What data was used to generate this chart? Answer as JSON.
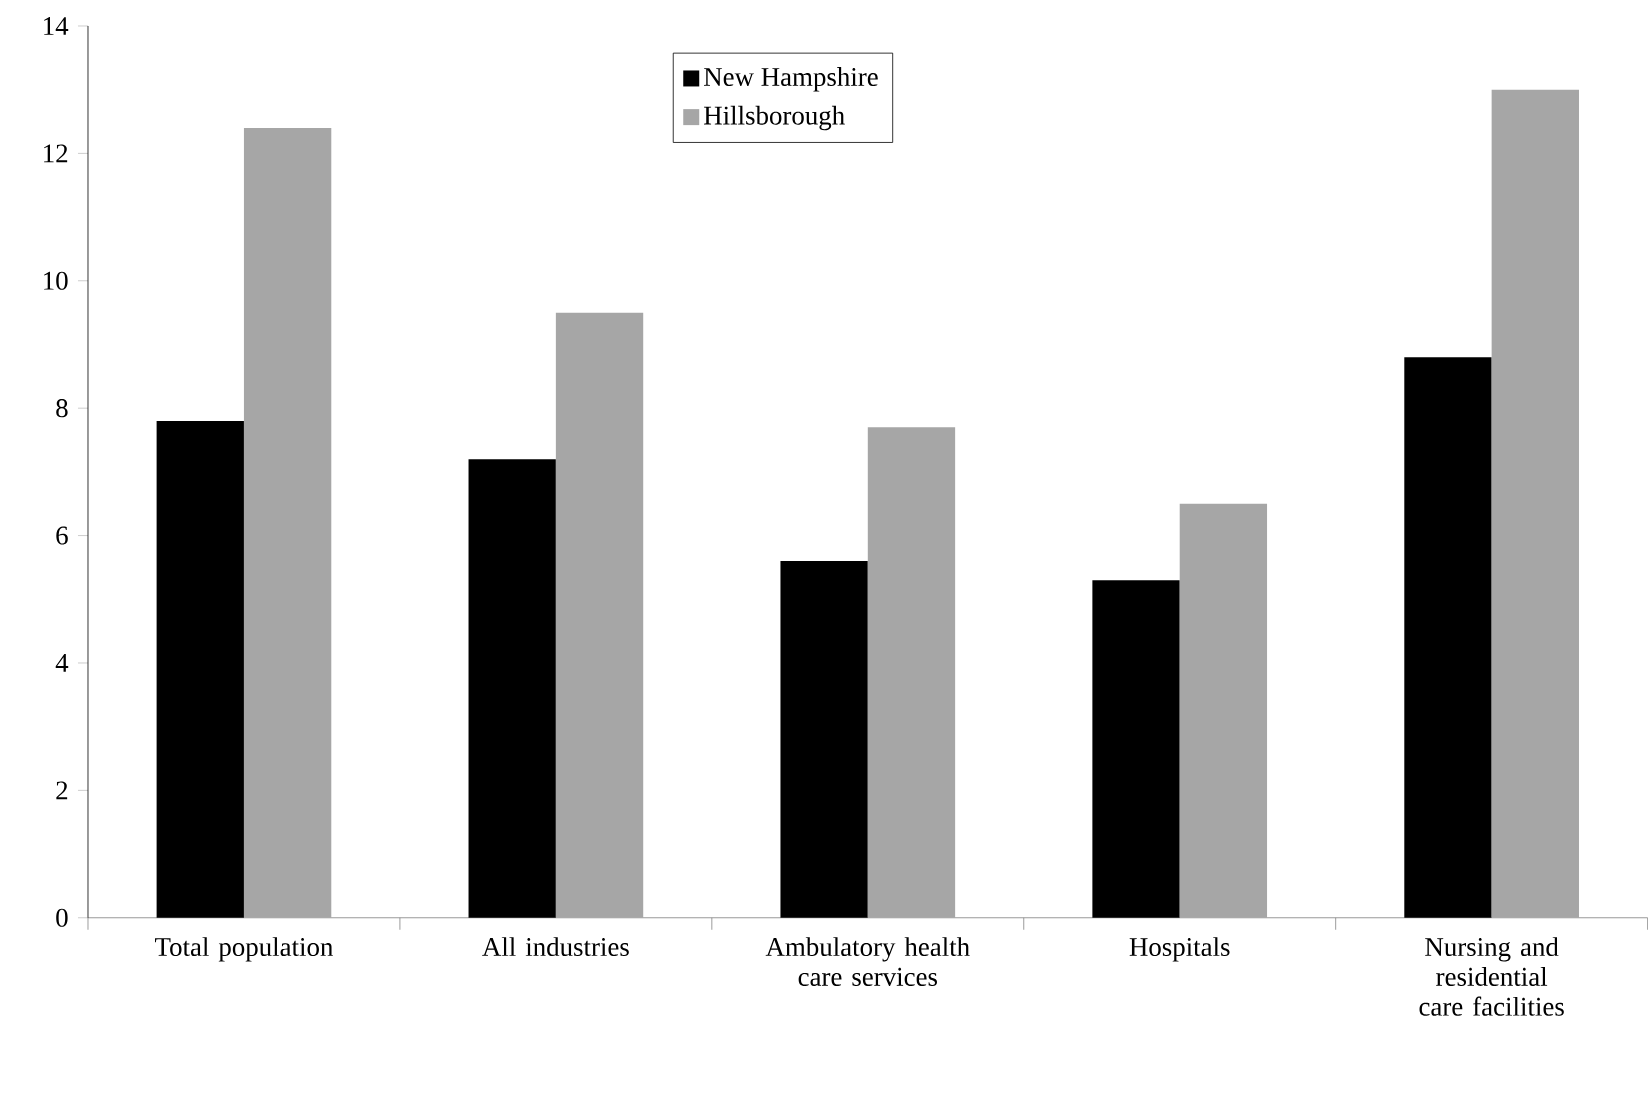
{
  "chart_data": {
    "type": "bar",
    "categories": [
      "Total population",
      "All industries",
      "Ambulatory health care services",
      "Hospitals",
      "Nursing and residential care facilities"
    ],
    "series": [
      {
        "name": "New Hampshire",
        "color": "#000000",
        "values": [
          7.8,
          7.2,
          5.6,
          5.3,
          8.8
        ]
      },
      {
        "name": "Hillsborough",
        "color": "#a6a6a6",
        "values": [
          12.4,
          9.5,
          7.7,
          6.5,
          13.0
        ]
      }
    ],
    "ylim": [
      0,
      14
    ],
    "yticks": [
      0,
      2,
      4,
      6,
      8,
      10,
      12,
      14
    ],
    "grid": false,
    "legend": "top"
  }
}
